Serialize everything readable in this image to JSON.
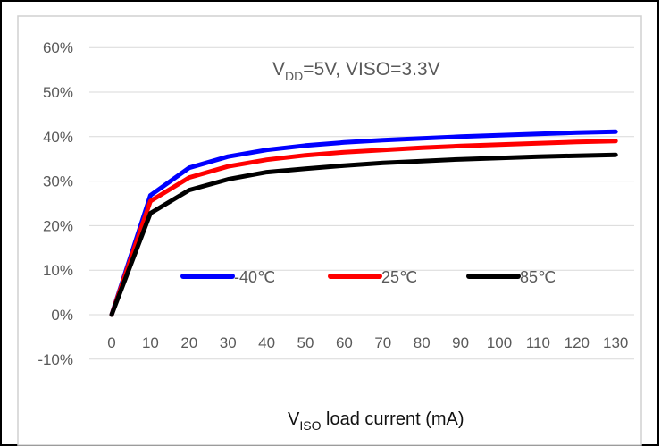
{
  "chart_data": {
    "type": "line",
    "annotation": {
      "part1": "V",
      "sub1": "DD",
      "part2": "=5V,   VISO=3.3V"
    },
    "xlabel": {
      "main": "V",
      "sub": "ISO",
      "rest": " load current (mA)"
    },
    "ylabel": "",
    "x": [
      0,
      10,
      20,
      30,
      40,
      50,
      60,
      70,
      80,
      90,
      100,
      110,
      120,
      130
    ],
    "x_tick_labels": [
      "0",
      "10",
      "20",
      "30",
      "40",
      "50",
      "60",
      "70",
      "80",
      "90",
      "100",
      "110",
      "120",
      "130"
    ],
    "ylim": [
      -10,
      60
    ],
    "y_tick_labels": [
      "-10%",
      "0%",
      "10%",
      "20%",
      "30%",
      "40%",
      "50%",
      "60%"
    ],
    "y_ticks": [
      -10,
      0,
      10,
      20,
      30,
      40,
      50,
      60
    ],
    "grid": true,
    "legend_position": "inside-middle",
    "series": [
      {
        "name": "-40℃",
        "color": "#0000ff",
        "values": [
          0,
          26.8,
          33.0,
          35.5,
          37.0,
          38.0,
          38.7,
          39.2,
          39.6,
          40.0,
          40.3,
          40.6,
          40.9,
          41.1
        ]
      },
      {
        "name": "25℃",
        "color": "#ff0000",
        "values": [
          0,
          25.5,
          30.8,
          33.3,
          34.8,
          35.8,
          36.5,
          37.0,
          37.5,
          37.9,
          38.2,
          38.5,
          38.8,
          39.0
        ]
      },
      {
        "name": "85℃",
        "color": "#000000",
        "values": [
          0,
          22.8,
          28.0,
          30.4,
          32.0,
          32.8,
          33.5,
          34.1,
          34.5,
          34.9,
          35.2,
          35.5,
          35.7,
          35.9
        ]
      }
    ]
  }
}
